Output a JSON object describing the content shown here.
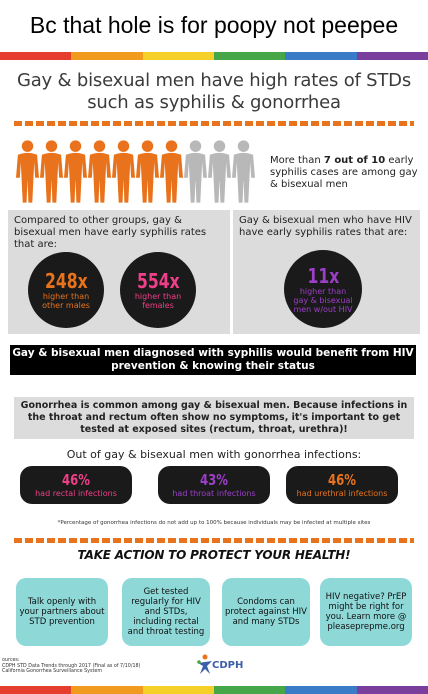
{
  "meme_caption": "Bc that hole is for poopy not peepee",
  "headline": "Gay & bisexual men have high rates of STDs such as syphilis & gonorrhea",
  "rainbow_colors": [
    "#e53e2f",
    "#f29a1e",
    "#f5d028",
    "#45a748",
    "#3a7bc8",
    "#7a3e9c"
  ],
  "people": {
    "orange_count": 7,
    "gray_count": 3,
    "orange": "#e8731c",
    "gray": "#b8b8b8"
  },
  "stat_seven": {
    "pre": "More than ",
    "bold": "7 out of 10",
    "post": " early syphilis cases are among gay & bisexual men"
  },
  "left_panel": {
    "text": "Compared to other groups, gay & bisexual men have early syphilis rates that are:",
    "c1": {
      "value": "248x",
      "label": "higher than other males",
      "color": "#e8731c"
    },
    "c2": {
      "value": "554x",
      "label": "higher than females",
      "color": "#ef3f88"
    }
  },
  "right_panel": {
    "text": "Gay & bisexual men who have HIV have early syphilis rates that are:",
    "c3": {
      "value": "11x",
      "label": "higher than gay & bisexual men w/out HIV",
      "color": "#9b3ec8"
    }
  },
  "black_bar": "Gay & bisexual men diagnosed with syphilis would benefit from HIV prevention & knowing their status",
  "gray_bar": "Gonorrhea is common among gay & bisexual men. Because infections in the throat and rectum often show no symptoms, it's important to get tested at exposed sites (rectum, throat, urethra)!",
  "out_of": "Out of gay & bisexual men with gonorrhea infections:",
  "pills": [
    {
      "value": "46%",
      "label": "had rectal infections",
      "color": "#ef3f88"
    },
    {
      "value": "43%",
      "label": "had throat infections",
      "color": "#9b3ec8"
    },
    {
      "value": "46%",
      "label": "had urethral infections",
      "color": "#e8731c"
    }
  ],
  "footnote": "*Percentage of gonorrhea infections do not add up to 100% because individuals may be infected at multiple sites",
  "take_action": "TAKE ACTION TO PROTECT YOUR HEALTH!",
  "boxes": [
    "Talk openly with your partners about STD prevention",
    "Get tested regularly for HIV and STDs, including rectal and throat testing",
    "Condoms can protect against HIV and many STDs",
    "HIV negative? PrEP might be right for you. Learn more @ pleaseprepme.org"
  ],
  "sources": {
    "title": "ources:",
    "line1": "CDPH STD Data Trends through 2017 (Final as of 7/10/18)",
    "line2": "California Gonorrhea Surveillance System"
  },
  "logo_text": "CDPH"
}
